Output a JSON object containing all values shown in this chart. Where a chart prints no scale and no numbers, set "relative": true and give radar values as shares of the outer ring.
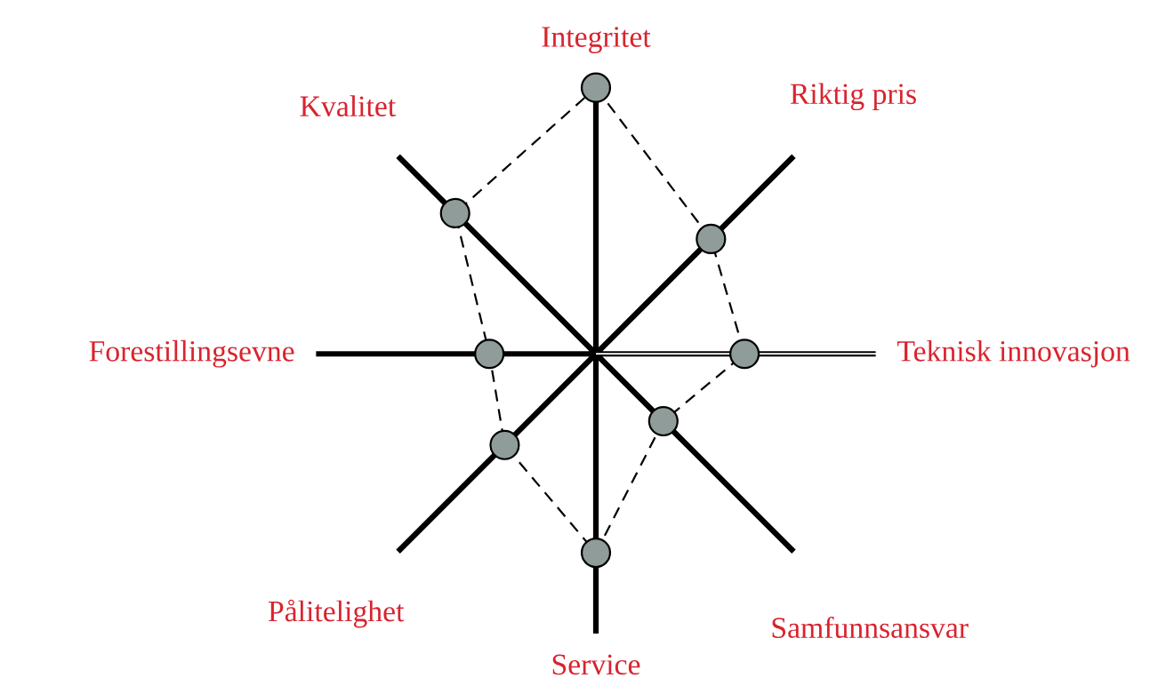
{
  "chart_data": {
    "type": "radar",
    "relative": true,
    "categories": [
      "Integritet",
      "Riktig pris",
      "Teknisk innovasjon",
      "Samfunnsansvar",
      "Service",
      "Pålitelighet",
      "Forestillingsevne",
      "Kvalitet"
    ],
    "series": [
      {
        "color": "#000000",
        "values": [
          0.95,
          0.58,
          0.53,
          0.34,
          0.71,
          0.46,
          0.38,
          0.71
        ]
      }
    ],
    "marker": "circle",
    "line_style": "dashed"
  }
}
